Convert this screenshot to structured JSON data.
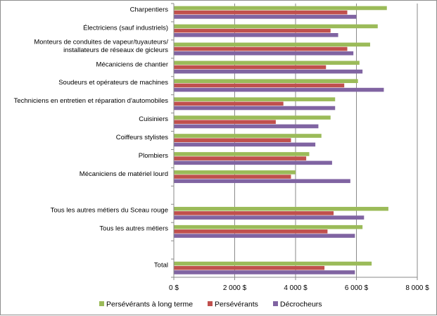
{
  "chart_data": {
    "type": "bar",
    "orientation": "horizontal",
    "categories": [
      [
        "Charpentiers"
      ],
      [
        "Électriciens (sauf industriels)"
      ],
      [
        "Monteurs de conduites de vapeur/tuyauteurs/",
        "installateurs de réseaux de gicleurs"
      ],
      [
        "Mécaniciens de chantier"
      ],
      [
        "Soudeurs et opérateurs de machines"
      ],
      [
        "Techniciens en entretien et réparation d'automobiles"
      ],
      [
        "Cuisiniers"
      ],
      [
        "Coiffeurs stylistes"
      ],
      [
        "Plombiers"
      ],
      [
        "Mécaniciens de matériel lourd"
      ],
      [
        ""
      ],
      [
        "Tous les autres métiers du Sceau rouge"
      ],
      [
        "Tous les autres métiers"
      ],
      [
        ""
      ],
      [
        "Total"
      ]
    ],
    "series": [
      {
        "name": "Persévérants à long terme",
        "color": "#9bbb59",
        "values": [
          7000,
          6700,
          6450,
          6100,
          6050,
          5300,
          5150,
          4850,
          4450,
          4000,
          null,
          7050,
          6200,
          null,
          6500
        ]
      },
      {
        "name": "Persévérants",
        "color": "#c0504d",
        "values": [
          5700,
          5150,
          5700,
          5000,
          5600,
          3600,
          3350,
          3850,
          4350,
          3850,
          null,
          5250,
          5050,
          null,
          4950
        ]
      },
      {
        "name": "Décrocheurs",
        "color": "#8064a2",
        "values": [
          6000,
          5400,
          5900,
          6200,
          6900,
          5300,
          4750,
          4650,
          5200,
          5800,
          null,
          6250,
          5950,
          null,
          5950
        ]
      }
    ],
    "xticks": [
      "0 $",
      "2 000 $",
      "4 000 $",
      "6 000 $",
      "8 000 $"
    ],
    "xlim": [
      0,
      8000
    ],
    "grid": "vertical",
    "legend_position": "bottom"
  }
}
